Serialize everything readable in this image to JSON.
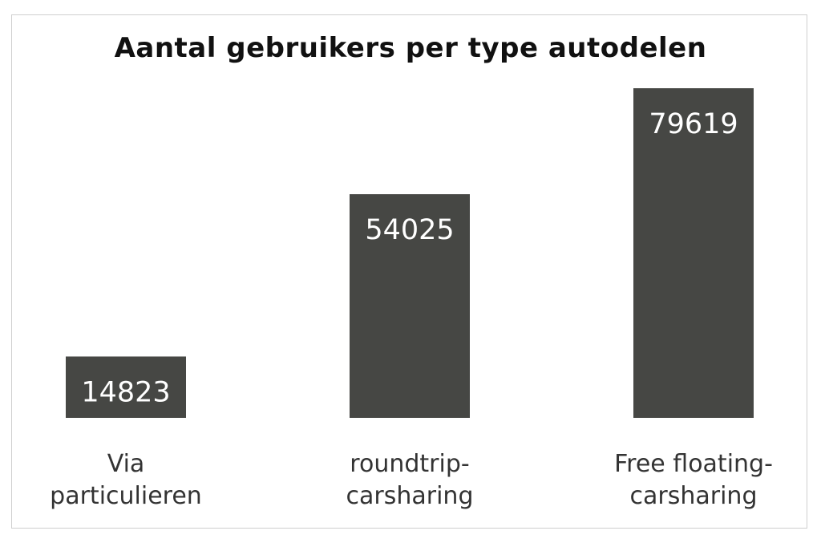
{
  "chart_data": {
    "type": "bar",
    "title": "Aantal gebruikers per type autodelen",
    "xlabel": "",
    "ylabel": "",
    "categories": [
      [
        "Via",
        "particulieren"
      ],
      [
        "roundtrip-",
        "carsharing"
      ],
      [
        "Free floating-",
        "carsharing"
      ]
    ],
    "values": [
      14823,
      54025,
      79619
    ],
    "value_labels": [
      "14823",
      "54025",
      "79619"
    ],
    "ylim": [
      0,
      80000
    ],
    "grid": false,
    "legend": "none",
    "bar_color": "#464744",
    "label_color": "#ffffff"
  }
}
